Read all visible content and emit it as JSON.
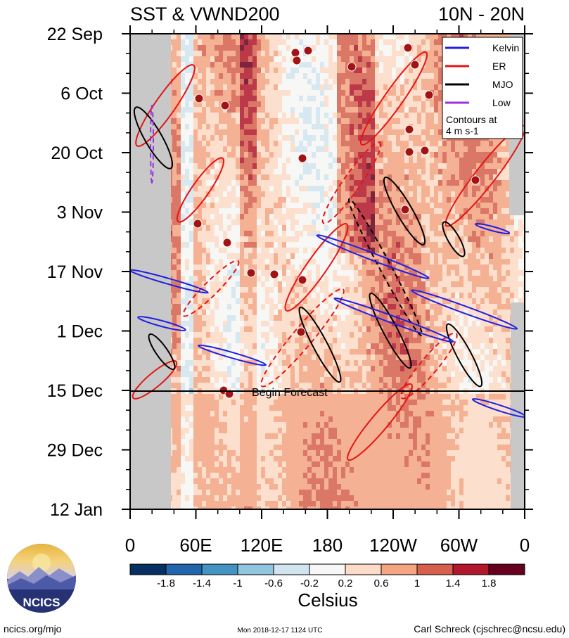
{
  "chart_data": {
    "type": "heatmap",
    "title_left": "SST & VWND200",
    "title_right": "10N - 20N",
    "y_tick_labels": [
      "22 Sep",
      "6 Oct",
      "20 Oct",
      "3 Nov",
      "17 Nov",
      "1 Dec",
      "15 Dec",
      "29 Dec",
      "12 Jan"
    ],
    "x_tick_labels": [
      "0",
      "60E",
      "120E",
      "180",
      "120W",
      "60W",
      "0"
    ],
    "x_range": [
      0,
      360
    ],
    "colorbar": {
      "tick_labels": [
        "-1.8",
        "-1.4",
        "-1",
        "-0.6",
        "-0.2",
        "0.2",
        "0.6",
        "1",
        "1.4",
        "1.8"
      ],
      "colors": [
        "#053061",
        "#2166ac",
        "#4393c3",
        "#92c5de",
        "#d1e5f0",
        "#f7f7f7",
        "#fddbc7",
        "#f4a582",
        "#d6604d",
        "#b2182b",
        "#67001f"
      ],
      "label": "Celsius"
    },
    "legend": {
      "position": "top-right",
      "entries": [
        {
          "label": "Kelvin",
          "color": "#1f1fe6"
        },
        {
          "label": "ER",
          "color": "#e61414"
        },
        {
          "label": "MJO",
          "color": "#000000"
        },
        {
          "label": "Low",
          "color": "#9933dd"
        }
      ],
      "note_line1": "Contours at",
      "note_line2": "4 m s-1"
    },
    "annotations": [
      {
        "text": "Begin Forecast"
      }
    ]
  },
  "logo_text": "NCICS",
  "footer": {
    "left": "ncics.org/mjo",
    "center": "Mon 2018-12-17 1124 UTC",
    "right": "Carl Schreck (cjschrec@ncsu.edu)"
  }
}
